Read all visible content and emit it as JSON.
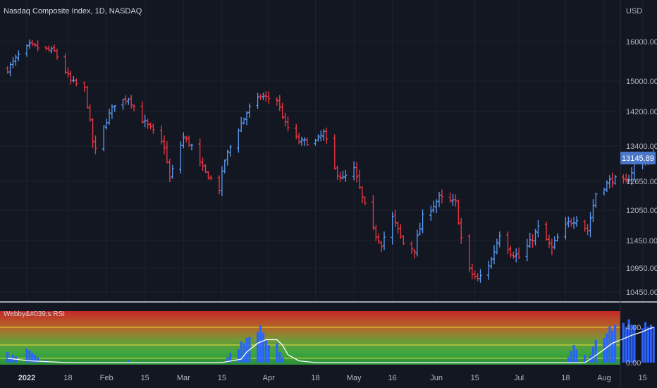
{
  "header": {
    "symbol_title": "Nasdaq Composite Index, 1D, NASDAQ",
    "currency": "USD",
    "indicator_title": "Webby&#039;s RSI"
  },
  "colors": {
    "background": "#131722",
    "grid": "#1e222d",
    "up": "#5b9cf6",
    "down": "#f23645",
    "last_price_bg": "#4a77c9",
    "separator": "#d1d4dc",
    "rsi_bar": "#2962ff",
    "rsi_line": "#ffffff",
    "band_line": "#ffeb3b"
  },
  "chart_data": [
    {
      "type": "ohlc",
      "title": "Nasdaq Composite Index, 1D, NASDAQ",
      "x_tick_labels": [
        "2022",
        "18",
        "Feb",
        "15",
        "Mar",
        "15",
        "Apr",
        "18",
        "May",
        "16",
        "Jun",
        "15",
        "Jul",
        "18",
        "Aug",
        "15"
      ],
      "x_tick_dates": [
        "2022-01-03",
        "2022-01-18",
        "2022-02-01",
        "2022-02-15",
        "2022-03-01",
        "2022-03-15",
        "2022-04-01",
        "2022-04-18",
        "2022-05-02",
        "2022-05-16",
        "2022-06-01",
        "2022-06-15",
        "2022-07-01",
        "2022-07-18",
        "2022-08-01",
        "2022-08-15"
      ],
      "y_tick_labels": [
        "16000.00",
        "15000.00",
        "14200.00",
        "13400.00",
        "12650.00",
        "12050.00",
        "11450.00",
        "10950.00",
        "10450.00"
      ],
      "y_ticks": [
        16000,
        15000,
        14200,
        13400,
        12650,
        12050,
        11450,
        10950,
        10450
      ],
      "last_price": 13145.89,
      "last_price_label": "13145.89",
      "approx_closes": {
        "start_date": "2021-12-27",
        "end_date": "2022-08-19",
        "points": [
          [
            "2021-12-27",
            15300
          ],
          [
            "2021-12-31",
            15650
          ],
          [
            "2022-01-04",
            15900
          ],
          [
            "2022-01-10",
            15800
          ],
          [
            "2022-01-13",
            15750
          ],
          [
            "2022-01-19",
            15000
          ],
          [
            "2022-01-24",
            14800
          ],
          [
            "2022-01-27",
            13500
          ],
          [
            "2022-01-28",
            13300
          ],
          [
            "2022-02-01",
            14000
          ],
          [
            "2022-02-04",
            14400
          ],
          [
            "2022-02-09",
            14550
          ],
          [
            "2022-02-14",
            14000
          ],
          [
            "2022-02-17",
            13800
          ],
          [
            "2022-02-22",
            13400
          ],
          [
            "2022-02-24",
            12700
          ],
          [
            "2022-03-01",
            13600
          ],
          [
            "2022-03-04",
            13400
          ],
          [
            "2022-03-08",
            12900
          ],
          [
            "2022-03-11",
            12700
          ],
          [
            "2022-03-14",
            12500
          ],
          [
            "2022-03-16",
            13100
          ],
          [
            "2022-03-21",
            13800
          ],
          [
            "2022-03-25",
            14300
          ],
          [
            "2022-03-29",
            14600
          ],
          [
            "2022-04-04",
            14500
          ],
          [
            "2022-04-07",
            13900
          ],
          [
            "2022-04-12",
            13500
          ],
          [
            "2022-04-18",
            13500
          ],
          [
            "2022-04-21",
            13700
          ],
          [
            "2022-04-25",
            12900
          ],
          [
            "2022-04-28",
            12700
          ],
          [
            "2022-05-02",
            12900
          ],
          [
            "2022-05-05",
            12300
          ],
          [
            "2022-05-09",
            11650
          ],
          [
            "2022-05-12",
            11400
          ],
          [
            "2022-05-16",
            11900
          ],
          [
            "2022-05-20",
            11400
          ],
          [
            "2022-05-24",
            11300
          ],
          [
            "2022-05-27",
            11900
          ],
          [
            "2022-06-02",
            12300
          ],
          [
            "2022-06-08",
            12200
          ],
          [
            "2022-06-10",
            11500
          ],
          [
            "2022-06-13",
            10900
          ],
          [
            "2022-06-16",
            10700
          ],
          [
            "2022-06-21",
            11100
          ],
          [
            "2022-06-24",
            11600
          ],
          [
            "2022-06-28",
            11250
          ],
          [
            "2022-07-01",
            11150
          ],
          [
            "2022-07-05",
            11400
          ],
          [
            "2022-07-08",
            11700
          ],
          [
            "2022-07-13",
            11300
          ],
          [
            "2022-07-15",
            11500
          ],
          [
            "2022-07-19",
            11800
          ],
          [
            "2022-07-22",
            11900
          ],
          [
            "2022-07-26",
            11650
          ],
          [
            "2022-07-29",
            12400
          ],
          [
            "2022-08-04",
            12700
          ],
          [
            "2022-08-09",
            12600
          ],
          [
            "2022-08-12",
            13000
          ],
          [
            "2022-08-16",
            13100
          ],
          [
            "2022-08-19",
            13146
          ]
        ]
      }
    },
    {
      "type": "bar",
      "title": "Webby&#039;s RSI",
      "y_tick_labels": [
        "4.00",
        "0.00"
      ],
      "y_ticks": [
        4,
        0
      ],
      "ylim": [
        0,
        6
      ],
      "bands": [
        4,
        2,
        0.5
      ],
      "histogram": [
        [
          "2021-12-27",
          1.2
        ],
        [
          "2021-12-28",
          0.6
        ],
        [
          "2021-12-29",
          0.9
        ],
        [
          "2021-12-30",
          0.7
        ],
        [
          "2022-01-03",
          1.6
        ],
        [
          "2022-01-04",
          1.4
        ],
        [
          "2022-01-05",
          1.1
        ],
        [
          "2022-01-06",
          0.9
        ],
        [
          "2022-01-07",
          0.6
        ],
        [
          "2022-01-10",
          0.3
        ],
        [
          "2022-02-09",
          0.3
        ],
        [
          "2022-03-17",
          0.6
        ],
        [
          "2022-03-18",
          1.1
        ],
        [
          "2022-03-21",
          1.5
        ],
        [
          "2022-03-22",
          2.4
        ],
        [
          "2022-03-23",
          2.2
        ],
        [
          "2022-03-24",
          2.8
        ],
        [
          "2022-03-25",
          2.9
        ],
        [
          "2022-03-28",
          3.5
        ],
        [
          "2022-03-29",
          4.2
        ],
        [
          "2022-03-30",
          3.4
        ],
        [
          "2022-03-31",
          2.6
        ],
        [
          "2022-04-01",
          2.0
        ],
        [
          "2022-04-04",
          2.2
        ],
        [
          "2022-04-05",
          1.2
        ],
        [
          "2022-04-06",
          0.6
        ],
        [
          "2022-07-19",
          0.6
        ],
        [
          "2022-07-20",
          1.3
        ],
        [
          "2022-07-21",
          2.0
        ],
        [
          "2022-07-22",
          1.5
        ],
        [
          "2022-07-25",
          0.9
        ],
        [
          "2022-07-27",
          0.8
        ],
        [
          "2022-07-28",
          1.8
        ],
        [
          "2022-07-29",
          2.6
        ],
        [
          "2022-08-01",
          2.8
        ],
        [
          "2022-08-02",
          3.3
        ],
        [
          "2022-08-03",
          4.1
        ],
        [
          "2022-08-04",
          3.6
        ],
        [
          "2022-08-05",
          4.3
        ],
        [
          "2022-08-08",
          4.5
        ],
        [
          "2022-08-09",
          4.0
        ],
        [
          "2022-08-10",
          4.9
        ],
        [
          "2022-08-11",
          4.3
        ],
        [
          "2022-08-12",
          4.2
        ],
        [
          "2022-08-15",
          3.9
        ],
        [
          "2022-08-16",
          4.6
        ],
        [
          "2022-08-17",
          4.0
        ],
        [
          "2022-08-18",
          4.3
        ],
        [
          "2022-08-19",
          4.1
        ]
      ],
      "smoothed_line": [
        [
          "2021-12-27",
          0.5
        ],
        [
          "2022-01-04",
          0.2
        ],
        [
          "2022-01-18",
          0.0
        ],
        [
          "2022-03-15",
          0.0
        ],
        [
          "2022-03-22",
          0.4
        ],
        [
          "2022-03-24",
          1.2
        ],
        [
          "2022-03-28",
          2.2
        ],
        [
          "2022-03-31",
          2.6
        ],
        [
          "2022-04-04",
          2.6
        ],
        [
          "2022-04-06",
          2.0
        ],
        [
          "2022-04-08",
          0.9
        ],
        [
          "2022-04-12",
          0.2
        ],
        [
          "2022-04-18",
          0.0
        ],
        [
          "2022-07-25",
          0.0
        ],
        [
          "2022-07-28",
          0.6
        ],
        [
          "2022-08-01",
          1.5
        ],
        [
          "2022-08-04",
          2.2
        ],
        [
          "2022-08-08",
          2.7
        ],
        [
          "2022-08-11",
          3.1
        ],
        [
          "2022-08-15",
          3.5
        ],
        [
          "2022-08-17",
          3.8
        ],
        [
          "2022-08-19",
          4.0
        ]
      ]
    }
  ]
}
